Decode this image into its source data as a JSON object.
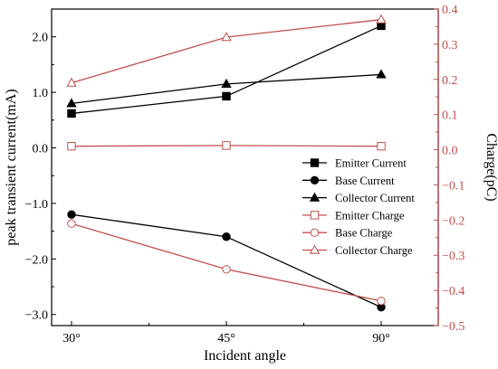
{
  "chart_data": {
    "type": "line",
    "categories": [
      "30°",
      "45°",
      "90°"
    ],
    "xlabel": "Incident angle",
    "ylabel_left": "peak transient current(mA)",
    "ylabel_right": "Charge(pC)",
    "ylim_left": [
      -3.2,
      2.5
    ],
    "ylim_right": [
      -0.5,
      0.4
    ],
    "yticks_left": [
      -3.0,
      -2.0,
      -1.0,
      0.0,
      1.0,
      2.0
    ],
    "yticks_left_labels": [
      "−3.0",
      "−2.0",
      "−1.0",
      "0.0",
      "1.0",
      "2.0"
    ],
    "yticks_right": [
      -0.5,
      -0.4,
      -0.3,
      -0.2,
      -0.1,
      0.0,
      0.1,
      0.2,
      0.3,
      0.4
    ],
    "yticks_right_labels": [
      "−0.5",
      "−0.4",
      "−0.3",
      "−0.2",
      "−0.1",
      "0.0",
      "0.1",
      "0.2",
      "0.3",
      "0.4"
    ],
    "legend_position": "lower-right",
    "grid": false,
    "colors": {
      "current": "#000000",
      "charge": "#c0504d",
      "right_axis": "#c0504d"
    },
    "series": [
      {
        "name": "Emitter Current",
        "axis": "left",
        "marker": "square-filled",
        "values": [
          0.62,
          0.93,
          2.2
        ]
      },
      {
        "name": "Base Current",
        "axis": "left",
        "marker": "circle-filled",
        "values": [
          -1.2,
          -1.6,
          -2.87
        ]
      },
      {
        "name": "Collector Current",
        "axis": "left",
        "marker": "triangle-filled",
        "values": [
          0.8,
          1.15,
          1.32
        ]
      },
      {
        "name": "Emitter Charge",
        "axis": "right",
        "marker": "square-open",
        "values": [
          0.01,
          0.012,
          0.01
        ]
      },
      {
        "name": "Base Charge",
        "axis": "right",
        "marker": "circle-open",
        "values": [
          -0.21,
          -0.34,
          -0.43
        ]
      },
      {
        "name": "Collector Charge",
        "axis": "right",
        "marker": "triangle-open",
        "values": [
          0.19,
          0.32,
          0.37
        ]
      }
    ]
  }
}
